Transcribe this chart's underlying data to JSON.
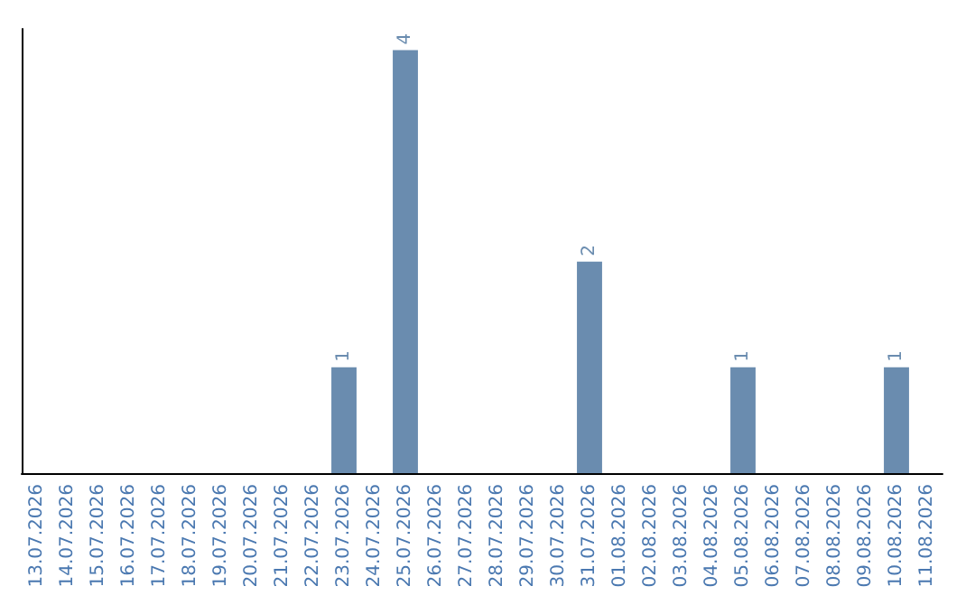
{
  "chart_data": {
    "type": "bar",
    "categories": [
      "13.07.2026",
      "14.07.2026",
      "15.07.2026",
      "16.07.2026",
      "17.07.2026",
      "18.07.2026",
      "19.07.2026",
      "20.07.2026",
      "21.07.2026",
      "22.07.2026",
      "23.07.2026",
      "24.07.2026",
      "25.07.2026",
      "26.07.2026",
      "27.07.2026",
      "28.07.2026",
      "29.07.2026",
      "30.07.2026",
      "31.07.2026",
      "01.08.2026",
      "02.08.2026",
      "03.08.2026",
      "04.08.2026",
      "05.08.2026",
      "06.08.2026",
      "07.08.2026",
      "08.08.2026",
      "09.08.2026",
      "10.08.2026",
      "11.08.2026"
    ],
    "values": [
      0,
      0,
      0,
      0,
      0,
      0,
      0,
      0,
      0,
      0,
      1,
      0,
      4,
      0,
      0,
      0,
      0,
      0,
      2,
      0,
      0,
      0,
      0,
      1,
      0,
      0,
      0,
      0,
      1,
      0
    ],
    "value_labels": [
      null,
      null,
      null,
      null,
      null,
      null,
      null,
      null,
      null,
      null,
      "1",
      null,
      "4",
      null,
      null,
      null,
      null,
      null,
      "2",
      null,
      null,
      null,
      null,
      "1",
      null,
      null,
      null,
      null,
      "1",
      null
    ],
    "color": "#6a8caf",
    "ylim": [
      0,
      4.2
    ],
    "tick_labels": "x",
    "grid": false
  }
}
